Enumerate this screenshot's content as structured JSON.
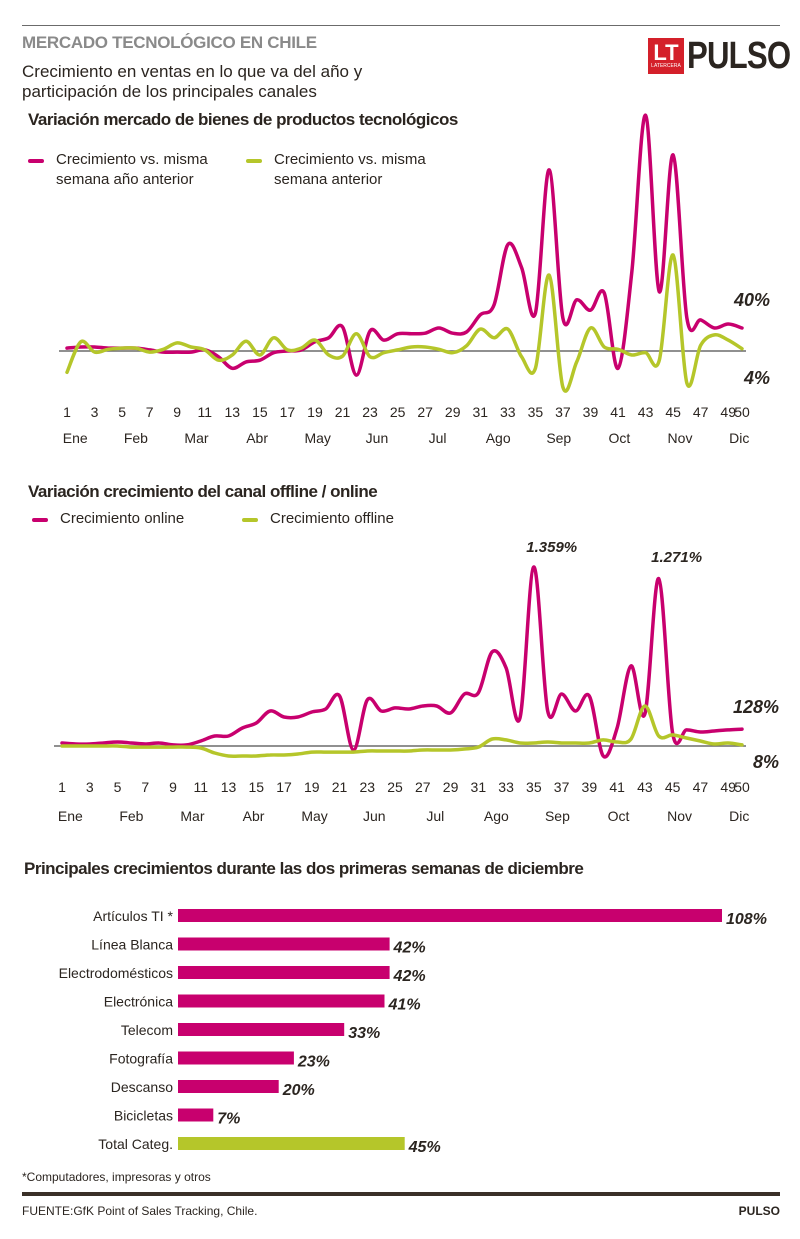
{
  "header": {
    "kicker": "MERCADO TECNOLÓGICO EN CHILE",
    "subtitle_line1": "Crecimiento en ventas en lo que va del año y",
    "subtitle_line2": "participación de los principales canales",
    "logo_lt": "LT",
    "logo_lt_sub": "LATERCERA",
    "logo_brand": "PULSO"
  },
  "colors": {
    "magenta": "#c8006e",
    "lime": "#b5c62a",
    "baseline": "#6b6b6b",
    "text": "#2b2520",
    "logo_red": "#d4202a"
  },
  "chart_data": [
    {
      "type": "line",
      "title": "Variación mercado de bienes de productos tecnológicos",
      "xlabel": "",
      "ylabel": "",
      "x": [
        1,
        2,
        3,
        4,
        5,
        6,
        7,
        8,
        9,
        10,
        11,
        12,
        13,
        14,
        15,
        16,
        17,
        18,
        19,
        20,
        21,
        22,
        23,
        24,
        25,
        26,
        27,
        28,
        29,
        30,
        31,
        32,
        33,
        34,
        35,
        36,
        37,
        38,
        39,
        40,
        41,
        42,
        43,
        44,
        45,
        46,
        47,
        48,
        49,
        50
      ],
      "x_tick_labels": [
        "1",
        "3",
        "5",
        "7",
        "9",
        "11",
        "13",
        "15",
        "17",
        "19",
        "21",
        "23",
        "25",
        "27",
        "29",
        "31",
        "33",
        "35",
        "37",
        "39",
        "41",
        "43",
        "45",
        "47",
        "49",
        "50"
      ],
      "x_tick_values": [
        1,
        3,
        5,
        7,
        9,
        11,
        13,
        15,
        17,
        19,
        21,
        23,
        25,
        27,
        29,
        31,
        33,
        35,
        37,
        39,
        41,
        43,
        45,
        47,
        49,
        50
      ],
      "month_labels": [
        "Ene",
        "Feb",
        "Mar",
        "Abr",
        "May",
        "Jun",
        "Jul",
        "Ago",
        "Sep",
        "Oct",
        "Nov",
        "Dic"
      ],
      "month_positions": [
        1.6,
        6,
        10.4,
        14.8,
        19.2,
        23.5,
        27.9,
        32.3,
        36.7,
        41.1,
        45.5,
        49.8
      ],
      "ylim": [
        -70,
        420
      ],
      "grid": false,
      "zero_line": true,
      "legend": "top-left",
      "series": [
        {
          "name": "Crecimiento vs. misma semana año anterior",
          "color": "#c8006e",
          "end_label": "40%",
          "values": [
            5,
            7,
            7,
            5,
            5,
            5,
            2,
            -2,
            -2,
            -2,
            2,
            -10,
            -30,
            -19,
            -16,
            -3,
            0,
            2,
            16,
            23,
            42,
            -42,
            35,
            19,
            30,
            30,
            31,
            40,
            31,
            33,
            63,
            80,
            185,
            145,
            66,
            315,
            57,
            89,
            71,
            101,
            -30,
            137,
            410,
            103,
            341,
            57,
            54,
            40,
            47,
            40
          ]
        },
        {
          "name": "Crecimiento vs. misma semana anterior",
          "color": "#b5c62a",
          "end_label": "4%",
          "values": [
            -37,
            16,
            -2,
            3,
            5,
            5,
            -2,
            3,
            14,
            7,
            2,
            -16,
            -7,
            17,
            -7,
            23,
            2,
            5,
            19,
            -7,
            -9,
            30,
            -10,
            -3,
            2,
            7,
            7,
            3,
            -3,
            9,
            38,
            23,
            38,
            -10,
            -30,
            132,
            -63,
            -19,
            40,
            7,
            3,
            -7,
            -3,
            -16,
            167,
            -56,
            10,
            28,
            19,
            4
          ]
        }
      ]
    },
    {
      "type": "line",
      "title": "Variación crecimiento del canal offline / online",
      "xlabel": "",
      "ylabel": "",
      "x": [
        1,
        2,
        3,
        4,
        5,
        6,
        7,
        8,
        9,
        10,
        11,
        12,
        13,
        14,
        15,
        16,
        17,
        18,
        19,
        20,
        21,
        22,
        23,
        24,
        25,
        26,
        27,
        28,
        29,
        30,
        31,
        32,
        33,
        34,
        35,
        36,
        37,
        38,
        39,
        40,
        41,
        42,
        43,
        44,
        45,
        46,
        47,
        48,
        49,
        50
      ],
      "x_tick_labels": [
        "1",
        "3",
        "5",
        "7",
        "9",
        "11",
        "13",
        "15",
        "17",
        "19",
        "21",
        "23",
        "25",
        "27",
        "29",
        "31",
        "33",
        "35",
        "37",
        "39",
        "41",
        "43",
        "45",
        "47",
        "49",
        "50"
      ],
      "x_tick_values": [
        1,
        3,
        5,
        7,
        9,
        11,
        13,
        15,
        17,
        19,
        21,
        23,
        25,
        27,
        29,
        31,
        33,
        35,
        37,
        39,
        41,
        43,
        45,
        47,
        49,
        50
      ],
      "month_labels": [
        "Ene",
        "Feb",
        "Mar",
        "Abr",
        "May",
        "Jun",
        "Jul",
        "Ago",
        "Sep",
        "Oct",
        "Nov",
        "Dic"
      ],
      "month_positions": [
        1.6,
        6,
        10.4,
        14.8,
        19.2,
        23.5,
        27.9,
        32.3,
        36.7,
        41.1,
        45.5,
        49.8
      ],
      "ylim": [
        -120,
        1400
      ],
      "grid": false,
      "zero_line": true,
      "legend": "top-left",
      "annotations": [
        {
          "x": 36,
          "label": "1.359%"
        },
        {
          "x": 45,
          "label": "1.271%"
        }
      ],
      "series": [
        {
          "name": "Crecimiento online",
          "color": "#c8006e",
          "end_label": "128%",
          "values": [
            23,
            15,
            15,
            23,
            30,
            23,
            15,
            23,
            8,
            8,
            38,
            76,
            76,
            137,
            175,
            266,
            220,
            220,
            258,
            281,
            380,
            -30,
            350,
            266,
            289,
            281,
            304,
            304,
            251,
            395,
            403,
            715,
            593,
            213,
            1359,
            266,
            395,
            266,
            380,
            -76,
            137,
            608,
            243,
            1271,
            99,
            122,
            106,
            114,
            122,
            128
          ]
        },
        {
          "name": "Crecimiento offline",
          "color": "#b5c62a",
          "end_label": "8%",
          "values": [
            0,
            0,
            0,
            0,
            0,
            -8,
            -8,
            -8,
            -8,
            -8,
            -15,
            -53,
            -76,
            -76,
            -76,
            -68,
            -68,
            -61,
            -46,
            -46,
            -46,
            -46,
            -38,
            -38,
            -38,
            -38,
            -30,
            -30,
            -30,
            -23,
            -8,
            53,
            46,
            23,
            23,
            30,
            23,
            23,
            23,
            46,
            30,
            53,
            304,
            76,
            84,
            61,
            38,
            15,
            23,
            8
          ]
        }
      ]
    },
    {
      "type": "bar",
      "orientation": "horizontal",
      "title": "Principales crecimientos durante las dos primeras semanas de diciembre",
      "xlabel": "",
      "ylabel": "",
      "categories": [
        "Artículos TI *",
        "Línea Blanca",
        "Electrodomésticos",
        "Electrónica",
        "Telecom",
        "Fotografía",
        "Descanso",
        "Bicicletas",
        "Total Categ."
      ],
      "values": [
        108,
        42,
        42,
        41,
        33,
        23,
        20,
        7,
        45
      ],
      "value_labels": [
        "108%",
        "42%",
        "42%",
        "41%",
        "33%",
        "23%",
        "20%",
        "7%",
        "45%"
      ],
      "bar_colors": [
        "#c8006e",
        "#c8006e",
        "#c8006e",
        "#c8006e",
        "#c8006e",
        "#c8006e",
        "#c8006e",
        "#c8006e",
        "#b5c62a"
      ],
      "xlim": [
        0,
        108
      ],
      "grid": false
    }
  ],
  "footer": {
    "footnote": "*Computadores, impresoras y otros",
    "source": "FUENTE:GfK Point of Sales Tracking, Chile.",
    "brand": "PULSO"
  }
}
